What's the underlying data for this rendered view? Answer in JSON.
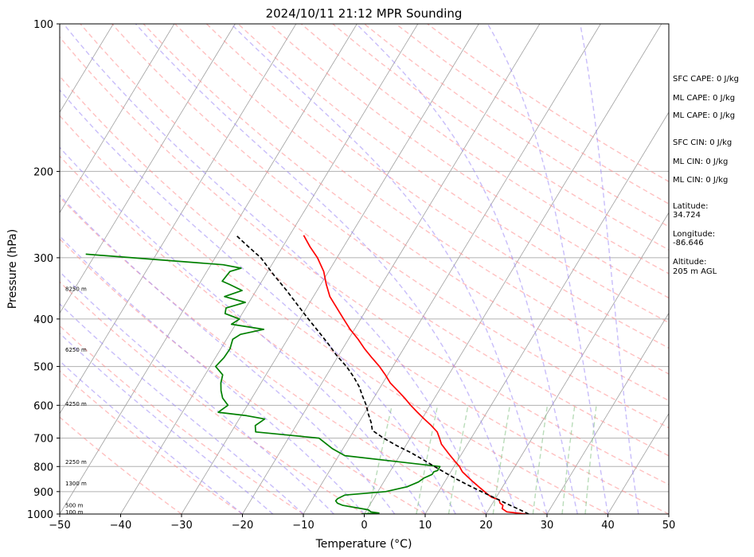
{
  "chart_data": {
    "type": "line",
    "title": "2024/10/11 21:12 MPR Sounding",
    "xlabel": "Temperature (°C)",
    "ylabel": "Pressure (hPa)",
    "xlim": [
      -50,
      50
    ],
    "ylim": [
      1000,
      100
    ],
    "y_scale": "log",
    "grid": true,
    "x_ticks": [
      "−50",
      "−40",
      "−30",
      "−20",
      "−10",
      "0",
      "10",
      "20",
      "30",
      "40",
      "50"
    ],
    "x_tick_values": [
      -50,
      -40,
      -30,
      -20,
      -10,
      0,
      10,
      20,
      30,
      40,
      50
    ],
    "y_ticks": [
      "100",
      "200",
      "300",
      "400",
      "500",
      "600",
      "700",
      "800",
      "900",
      "1000"
    ],
    "y_tick_values": [
      100,
      200,
      300,
      400,
      500,
      600,
      700,
      800,
      900,
      1000
    ],
    "height_labels": [
      {
        "text": "100 m",
        "p": 990
      },
      {
        "text": "500 m",
        "p": 960
      },
      {
        "text": "1300 m",
        "p": 866
      },
      {
        "text": "2250 m",
        "p": 783
      },
      {
        "text": "4250 m",
        "p": 596
      },
      {
        "text": "6250 m",
        "p": 462
      },
      {
        "text": "8250 m",
        "p": 347
      }
    ],
    "colors": {
      "temperature": "#ff0000",
      "dewpoint": "#008000",
      "parcel": "#000000",
      "isotherm": "#a0a0a0",
      "dry_adiabat": "#ff8c8c",
      "moist_adiabat": "#9b87f5",
      "mixing_ratio": "#7fbf7f"
    },
    "series": [
      {
        "key": "temperature",
        "p": [
          1000,
          990,
          975,
          960,
          950,
          935,
          925,
          910,
          900,
          880,
          860,
          840,
          820,
          800,
          780,
          760,
          740,
          720,
          700,
          680,
          660,
          640,
          620,
          600,
          580,
          560,
          540,
          520,
          500,
          480,
          460,
          440,
          420,
          400,
          380,
          360,
          340,
          320,
          300,
          285,
          270
        ],
        "t": [
          26.5,
          23.2,
          22.1,
          21.9,
          21.2,
          20.7,
          19.3,
          18.2,
          17.5,
          16.1,
          14.7,
          13.3,
          11.9,
          10.9,
          9.6,
          8.3,
          7.0,
          5.7,
          4.8,
          3.8,
          2.2,
          0.4,
          -1.4,
          -3.2,
          -4.9,
          -6.8,
          -8.8,
          -10.4,
          -12.2,
          -14.3,
          -16.4,
          -18.4,
          -20.7,
          -22.8,
          -25.0,
          -27.3,
          -29.1,
          -30.8,
          -33.2,
          -35.5,
          -37.7
        ]
      },
      {
        "key": "dewpoint",
        "p": [
          1000,
          995,
          990,
          980,
          970,
          960,
          950,
          940,
          930,
          915,
          900,
          880,
          860,
          845,
          830,
          820,
          815,
          800,
          760,
          735,
          700,
          690,
          680,
          660,
          640,
          630,
          620,
          600,
          580,
          560,
          540,
          520,
          500,
          480,
          460,
          440,
          430,
          420,
          410,
          400,
          390,
          380,
          370,
          360,
          350,
          340,
          335,
          320,
          315,
          310,
          295
        ],
        "t": [
          -0.5,
          2.3,
          0.9,
          0.2,
          -2.1,
          -4.4,
          -5.5,
          -6.0,
          -5.9,
          -5.1,
          1.3,
          4.3,
          5.7,
          6.2,
          7.2,
          7.2,
          7.7,
          7.7,
          -9.0,
          -11.8,
          -15.0,
          -20.5,
          -26.0,
          -26.7,
          -25.8,
          -29.1,
          -34.1,
          -33.2,
          -34.8,
          -35.8,
          -36.6,
          -37.1,
          -39.1,
          -38.6,
          -38.5,
          -39.0,
          -38.2,
          -34.9,
          -40.7,
          -39.9,
          -42.8,
          -43.2,
          -40.6,
          -44.6,
          -42.3,
          -45.0,
          -46.5,
          -46.2,
          -44.7,
          -48.0,
          -71.6
        ]
      },
      {
        "key": "parcel",
        "p": [
          1000,
          975,
          950,
          925,
          900,
          875,
          850,
          825,
          800,
          775,
          750,
          725,
          700,
          675,
          650,
          625,
          600,
          575,
          550,
          525,
          500,
          475,
          450,
          425,
          400,
          375,
          350,
          325,
          300,
          285,
          270
        ],
        "t": [
          27.0,
          24.6,
          22.1,
          19.6,
          17.0,
          14.4,
          11.8,
          9.3,
          6.8,
          4.3,
          1.6,
          -1.5,
          -4.4,
          -7.0,
          -8.0,
          -9.3,
          -10.5,
          -12.0,
          -13.5,
          -15.4,
          -17.6,
          -20.3,
          -22.8,
          -25.6,
          -28.6,
          -31.7,
          -35.0,
          -38.7,
          -42.5,
          -45.6,
          -48.8
        ]
      }
    ],
    "info": {
      "sfc_cape": "SFC CAPE: 0 J/kg",
      "ml_cape_1": "ML CAPE: 0 J/kg",
      "ml_cape_2": "ML CAPE: 0 J/kg",
      "sfc_cin": "SFC CIN: 0 J/kg",
      "ml_cin_1": "ML CIN: 0 J/kg",
      "ml_cin_2": "ML CIN: 0 J/kg",
      "latitude_label": "Latitude:",
      "latitude_value": "34.724",
      "longitude_label": "Longitude:",
      "longitude_value": "-86.646",
      "altitude_label": "Altitude:",
      "altitude_value": "205 m AGL"
    }
  }
}
